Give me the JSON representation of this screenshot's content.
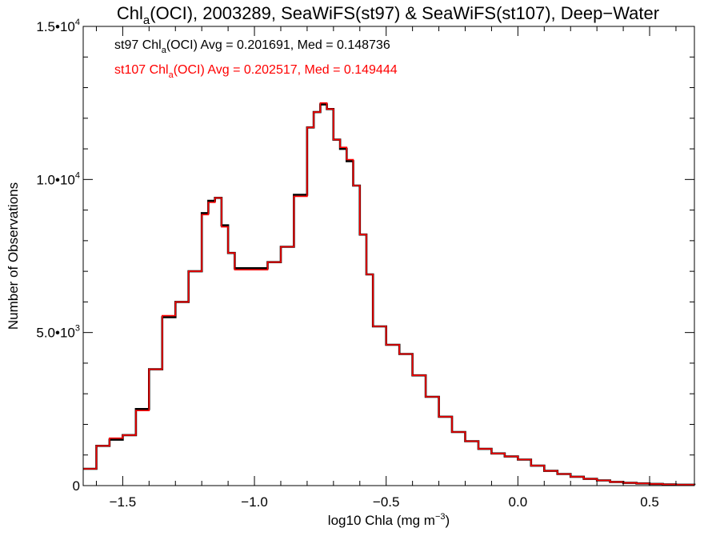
{
  "chart_data": {
    "type": "line",
    "title_parts": {
      "pre": "Chl",
      "sub": "a",
      "post": "(OCI), 2003289, SeaWiFS(st97) & SeaWiFS(st107), Deep−Water"
    },
    "xlabel_parts": {
      "pre": "log10 Chla (mg m",
      "sup": "−3",
      "post": ")"
    },
    "ylabel": "Number of Observations",
    "xlim": [
      -1.65,
      0.67
    ],
    "ylim": [
      0,
      15000
    ],
    "x_ticks": [
      -1.5,
      -1.0,
      -0.5,
      0.0,
      0.5
    ],
    "x_tick_labels": [
      "−1.5",
      "−1.0",
      "−0.5",
      "0.0",
      "0.5"
    ],
    "y_ticks": [
      {
        "value": 0,
        "base": "0",
        "sup": ""
      },
      {
        "value": 5000,
        "base": "5.0•10",
        "sup": "3"
      },
      {
        "value": 10000,
        "base": "1.0•10",
        "sup": "4"
      },
      {
        "value": 15000,
        "base": "1.5•10",
        "sup": "4"
      }
    ],
    "grid": false,
    "step": true,
    "legend": [
      {
        "pre": "st97 Chl",
        "sub": "a",
        "post": "(OCI) Avg = 0.201691, Med = 0.148736",
        "color": "#000000"
      },
      {
        "pre": "st107 Chl",
        "sub": "a",
        "post": "(OCI) Avg = 0.202517, Med = 0.149444",
        "color": "#ff0000"
      }
    ],
    "x": [
      -1.65,
      -1.6,
      -1.55,
      -1.5,
      -1.45,
      -1.4,
      -1.35,
      -1.3,
      -1.25,
      -1.2,
      -1.175,
      -1.15,
      -1.125,
      -1.1,
      -1.075,
      -1.05,
      -1.0,
      -0.95,
      -0.9,
      -0.85,
      -0.8,
      -0.775,
      -0.75,
      -0.725,
      -0.7,
      -0.675,
      -0.65,
      -0.625,
      -0.6,
      -0.575,
      -0.55,
      -0.5,
      -0.45,
      -0.4,
      -0.35,
      -0.3,
      -0.25,
      -0.2,
      -0.15,
      -0.1,
      -0.05,
      0.0,
      0.05,
      0.1,
      0.15,
      0.2,
      0.25,
      0.3,
      0.35,
      0.4,
      0.45,
      0.5,
      0.55,
      0.6,
      0.67
    ],
    "series": [
      {
        "name": "st97",
        "color": "#000000",
        "values": [
          550,
          1300,
          1500,
          1650,
          2500,
          3800,
          5500,
          6000,
          7000,
          8900,
          9300,
          9400,
          8500,
          7600,
          7100,
          7100,
          7100,
          7300,
          7800,
          9500,
          11700,
          12200,
          12450,
          12300,
          11300,
          11000,
          10600,
          9800,
          8200,
          6900,
          5200,
          4600,
          4300,
          3600,
          2900,
          2250,
          1750,
          1450,
          1200,
          1050,
          950,
          850,
          650,
          480,
          380,
          290,
          220,
          170,
          120,
          90,
          70,
          55,
          40,
          30,
          20
        ]
      },
      {
        "name": "st107",
        "color": "#ff0000",
        "values": [
          550,
          1300,
          1550,
          1650,
          2450,
          3800,
          5550,
          6000,
          7000,
          8850,
          9250,
          9400,
          8450,
          7600,
          7050,
          7050,
          7050,
          7300,
          7800,
          9450,
          11700,
          12200,
          12500,
          12300,
          11300,
          11050,
          10650,
          9800,
          8200,
          6900,
          5200,
          4600,
          4300,
          3600,
          2900,
          2250,
          1750,
          1450,
          1200,
          1050,
          950,
          850,
          650,
          480,
          380,
          290,
          220,
          170,
          120,
          90,
          70,
          55,
          40,
          30,
          20
        ]
      }
    ]
  }
}
